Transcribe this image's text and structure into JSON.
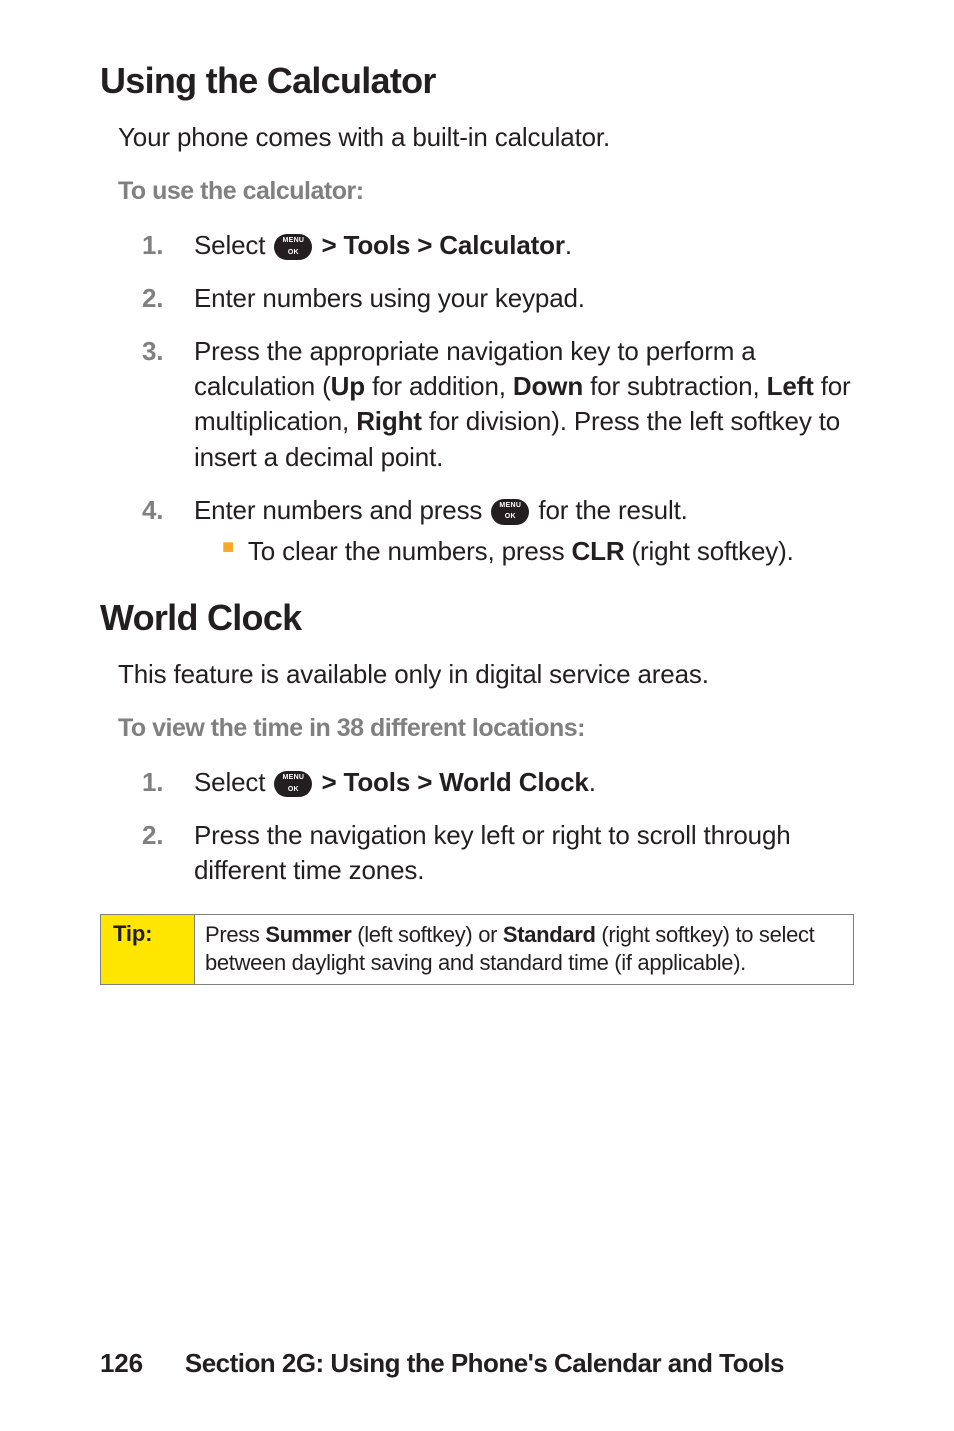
{
  "section1": {
    "heading": "Using the Calculator",
    "intro": "Your phone comes with a built-in calculator.",
    "subheading": "To use the calculator:",
    "steps": [
      {
        "num": "1.",
        "prefix": "Select ",
        "suffix_bold": " > Tools > Calculator",
        "end": "."
      },
      {
        "num": "2.",
        "text": "Enter numbers using your keypad."
      },
      {
        "num": "3.",
        "parts": {
          "p1": "Press the appropriate navigation key to perform a calculation (",
          "b1": "Up",
          "p2": " for addition, ",
          "b2": "Down",
          "p3": " for subtraction, ",
          "b3": "Left",
          "p4": " for multiplication, ",
          "b4": "Right",
          "p5": " for division). Press the left softkey to insert a decimal point."
        }
      },
      {
        "num": "4.",
        "prefix": "Enter numbers and press ",
        "suffix": " for the result.",
        "bullet": {
          "p1": "To clear the numbers, press ",
          "b1": "CLR",
          "p2": " (right softkey)."
        }
      }
    ]
  },
  "section2": {
    "heading": "World Clock",
    "intro": "This feature is available only in digital service areas.",
    "subheading": "To view the time in 38 different locations:",
    "steps": [
      {
        "num": "1.",
        "prefix": "Select ",
        "suffix_bold": " > Tools > World Clock",
        "end": "."
      },
      {
        "num": "2.",
        "text": "Press the navigation key left or right to scroll through different time zones."
      }
    ]
  },
  "tip": {
    "label": "Tip:",
    "parts": {
      "p1": "Press ",
      "b1": "Summer",
      "p2": " (left softkey) or ",
      "b2": "Standard",
      "p3": " (right softkey) to select between daylight saving and standard time (if applicable)."
    }
  },
  "footer": {
    "page": "126",
    "title": "Section 2G: Using the Phone's Calendar and Tools"
  },
  "colors": {
    "text": "#231f20",
    "gray": "#808080",
    "tip_bg": "#ffe600",
    "bullet": "#f9a825",
    "background": "#ffffff"
  },
  "typography": {
    "h2_size": 36,
    "body_size": 26,
    "subheading_size": 25,
    "tip_size": 22,
    "footer_size": 26
  }
}
